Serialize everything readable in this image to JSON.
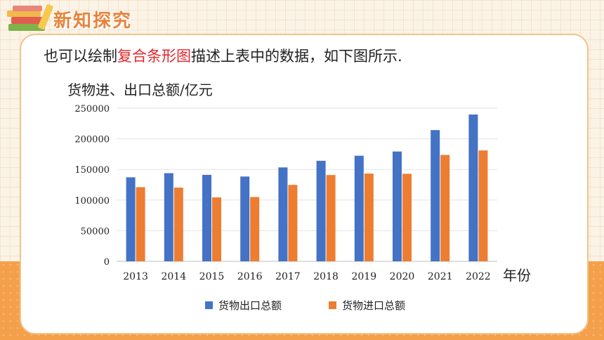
{
  "header": {
    "title": "新知探究"
  },
  "intro": {
    "before": "也可以绘制",
    "highlight": "复合条形图",
    "after": "描述上表中的数据，如下图所示."
  },
  "colors": {
    "export": "#4472c4",
    "import": "#ed7d31",
    "header": "#e8833a",
    "highlight": "#e0282e"
  },
  "chart_data": {
    "type": "bar",
    "ylabel": "货物进、出口总额/亿元",
    "xlabel": "年份",
    "ylim": [
      0,
      250000
    ],
    "yticks": [
      "0",
      "50000",
      "100000",
      "150000",
      "200000",
      "250000"
    ],
    "categories": [
      "2013",
      "2014",
      "2015",
      "2016",
      "2017",
      "2018",
      "2019",
      "2020",
      "2021",
      "2022"
    ],
    "series": [
      {
        "name": "货物出口总额",
        "color": "#4472c4",
        "values": [
          137131,
          143884,
          141167,
          138419,
          153309,
          164128,
          172374,
          179279,
          214255,
          239654
        ]
      },
      {
        "name": "货物进口总额",
        "color": "#ed7d31",
        "values": [
          121037,
          120358,
          104336,
          104967,
          124790,
          140880,
          143254,
          142936,
          173661,
          181024
        ]
      }
    ],
    "legend_position": "bottom",
    "grid": true
  }
}
